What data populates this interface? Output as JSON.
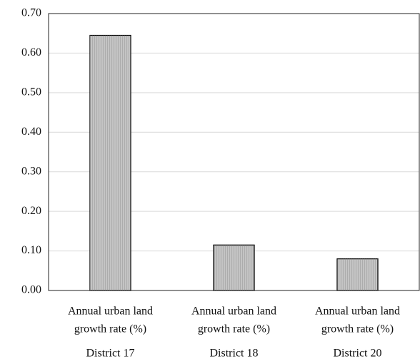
{
  "chart_data": {
    "type": "bar",
    "categories": [
      "District 17",
      "District 18",
      "District 20"
    ],
    "metric_labels": [
      [
        "Annual urban land",
        "growth rate (%)"
      ],
      [
        "Annual urban land",
        "growth rate (%)"
      ],
      [
        "Annual urban land",
        "growth rate (%)"
      ]
    ],
    "values": [
      0.645,
      0.115,
      0.08
    ],
    "color": "#c4c4c4",
    "ylim": [
      0,
      0.7
    ],
    "yticks": [
      {
        "value": 0,
        "label": "0.00"
      },
      {
        "value": 0.1,
        "label": "0.10"
      },
      {
        "value": 0.2,
        "label": "0.20"
      },
      {
        "value": 0.3,
        "label": "0.30"
      },
      {
        "value": 0.4,
        "label": "0.40"
      },
      {
        "value": 0.5,
        "label": "0.50"
      },
      {
        "value": 0.6,
        "label": "0.60"
      },
      {
        "value": 0.7,
        "label": "0.70"
      }
    ],
    "grid": true
  }
}
